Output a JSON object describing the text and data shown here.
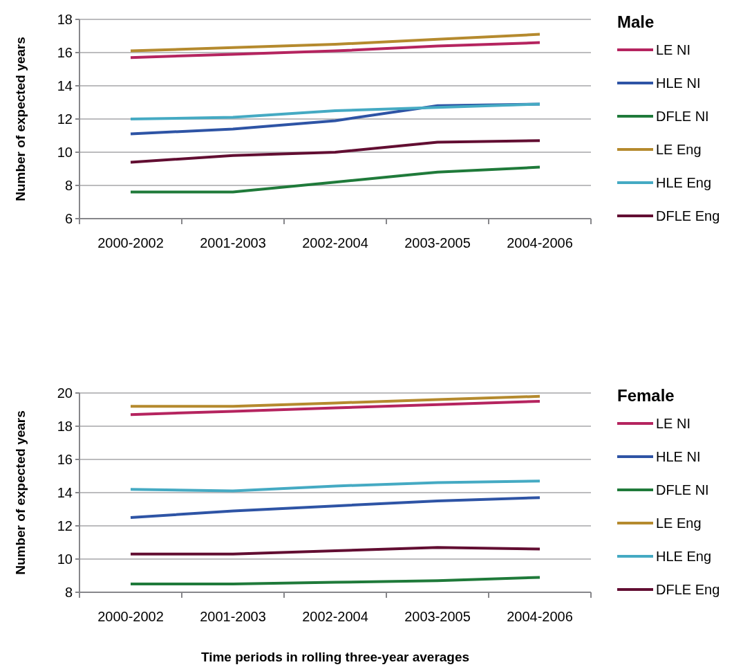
{
  "chart_data": [
    {
      "type": "line",
      "legend_title": "Male",
      "ylabel": "Number of expected years",
      "categories": [
        "2000-2002",
        "2001-2003",
        "2002-2004",
        "2003-2005",
        "2004-2006"
      ],
      "ylim": [
        6,
        18
      ],
      "yticks": [
        6,
        8,
        10,
        12,
        14,
        16,
        18
      ],
      "grid": "y",
      "legend": "right",
      "marker": "none",
      "line_style": "solid",
      "series": [
        {
          "name": "LE NI",
          "color": "#b5245f",
          "values": [
            15.7,
            15.9,
            16.1,
            16.4,
            16.6
          ]
        },
        {
          "name": "HLE NI",
          "color": "#2e54a5",
          "values": [
            11.1,
            11.4,
            11.9,
            12.8,
            12.9
          ]
        },
        {
          "name": "DFLE NI",
          "color": "#1f7a3a",
          "values": [
            7.6,
            7.6,
            8.2,
            8.8,
            9.1
          ]
        },
        {
          "name": "LE Eng",
          "color": "#b58a2e",
          "values": [
            16.1,
            16.3,
            16.5,
            16.8,
            17.1
          ]
        },
        {
          "name": "HLE Eng",
          "color": "#45aac3",
          "values": [
            12.0,
            12.1,
            12.5,
            12.7,
            12.9
          ]
        },
        {
          "name": "DFLE Eng",
          "color": "#620e32",
          "values": [
            9.4,
            9.8,
            10.0,
            10.6,
            10.7
          ]
        }
      ]
    },
    {
      "type": "line",
      "legend_title": "Female",
      "ylabel": "Number of expected years",
      "xlabel": "Time periods in rolling three-year averages",
      "categories": [
        "2000-2002",
        "2001-2003",
        "2002-2004",
        "2003-2005",
        "2004-2006"
      ],
      "ylim": [
        8,
        20
      ],
      "yticks": [
        8,
        10,
        12,
        14,
        16,
        18,
        20
      ],
      "grid": "y",
      "legend": "right",
      "marker": "none",
      "line_style": "solid",
      "series": [
        {
          "name": "LE NI",
          "color": "#b5245f",
          "values": [
            18.7,
            18.9,
            19.1,
            19.3,
            19.5
          ]
        },
        {
          "name": "HLE NI",
          "color": "#2e54a5",
          "values": [
            12.5,
            12.9,
            13.2,
            13.5,
            13.7
          ]
        },
        {
          "name": "DFLE NI",
          "color": "#1f7a3a",
          "values": [
            8.5,
            8.5,
            8.6,
            8.7,
            8.9
          ]
        },
        {
          "name": "LE Eng",
          "color": "#b58a2e",
          "values": [
            19.2,
            19.2,
            19.4,
            19.6,
            19.8
          ]
        },
        {
          "name": "HLE Eng",
          "color": "#45aac3",
          "values": [
            14.2,
            14.1,
            14.4,
            14.6,
            14.7
          ]
        },
        {
          "name": "DFLE Eng",
          "color": "#620e32",
          "values": [
            10.3,
            10.3,
            10.5,
            10.7,
            10.6
          ]
        }
      ]
    }
  ]
}
